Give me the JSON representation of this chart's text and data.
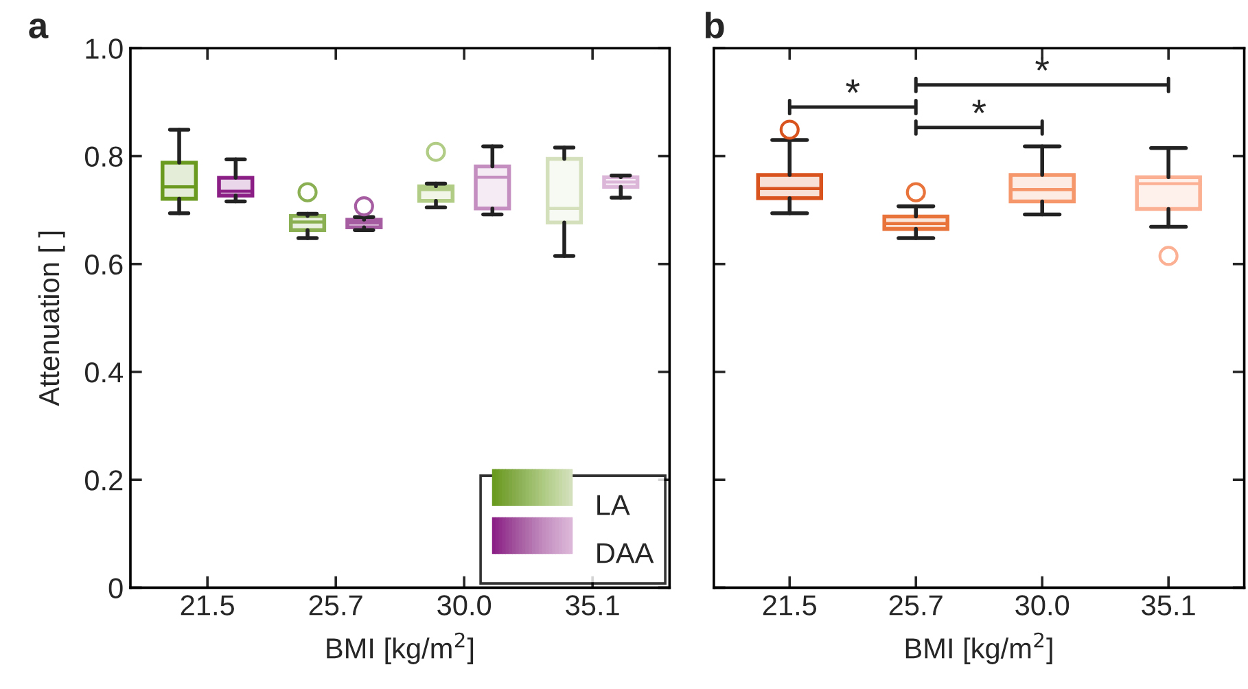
{
  "chart_data": [
    {
      "type": "box",
      "title": "a",
      "xlabel": "BMI [kg/m$^{2}$]",
      "ylabel": "Attenuation [ ]",
      "categories": [
        "21.5",
        "25.7",
        "30.0",
        "35.1"
      ],
      "ylim": [
        0,
        1
      ],
      "yticks": [
        0,
        0.2,
        0.4,
        0.6,
        0.8,
        {
          "value": 1,
          "label": "1.0"
        }
      ],
      "grid": false,
      "legend": "bottom right",
      "series": [
        {
          "name": "LA",
          "colors": [
            "#6a9a1f",
            "#8bb054",
            "#b0cc85",
            "#d3e0bb"
          ],
          "boxes": [
            {
              "low": 0.694,
              "q1": 0.721,
              "median": 0.743,
              "q3": 0.788,
              "high": 0.849
            },
            {
              "low": 0.648,
              "q1": 0.663,
              "median": 0.678,
              "q3": 0.689,
              "high": 0.693,
              "outliers": [
                0.733
              ]
            },
            {
              "low": 0.705,
              "q1": 0.717,
              "median": 0.738,
              "q3": 0.744,
              "high": 0.749,
              "outliers": [
                0.808
              ]
            },
            {
              "low": 0.615,
              "q1": 0.677,
              "median": 0.703,
              "q3": 0.795,
              "high": 0.816
            }
          ]
        },
        {
          "name": "DAA",
          "colors": [
            "#8b1f86",
            "#a65ca1",
            "#c48fc0",
            "#dbb6d8"
          ],
          "boxes": [
            {
              "low": 0.716,
              "q1": 0.727,
              "median": 0.735,
              "q3": 0.76,
              "high": 0.794
            },
            {
              "low": 0.663,
              "q1": 0.668,
              "median": 0.676,
              "q3": 0.682,
              "high": 0.687,
              "outliers": [
                0.707
              ]
            },
            {
              "low": 0.692,
              "q1": 0.703,
              "median": 0.761,
              "q3": 0.781,
              "high": 0.818
            },
            {
              "low": 0.723,
              "q1": 0.743,
              "median": 0.752,
              "q3": 0.761,
              "high": 0.764
            }
          ]
        }
      ]
    },
    {
      "type": "box",
      "title": "b",
      "xlabel": "BMI [kg/m$^{2}$]",
      "categories": [
        "21.5",
        "25.7",
        "30.0",
        "35.1"
      ],
      "ylim": [
        0,
        1
      ],
      "yticks": [
        0,
        0.2,
        0.4,
        0.6,
        0.8,
        1
      ],
      "grid": false,
      "tick_labels": "x",
      "annotations": [
        "*",
        "*",
        "*"
      ],
      "series": [
        {
          "colors": [
            "#d9531e",
            "#e8743c",
            "#f5966b",
            "#fbb093"
          ],
          "boxes": [
            {
              "low": 0.694,
              "q1": 0.722,
              "median": 0.74,
              "q3": 0.765,
              "high": 0.83,
              "outliers": [
                0.849
              ]
            },
            {
              "low": 0.648,
              "q1": 0.665,
              "median": 0.675,
              "q3": 0.688,
              "high": 0.707,
              "outliers": [
                0.733
              ]
            },
            {
              "low": 0.692,
              "q1": 0.716,
              "median": 0.738,
              "q3": 0.765,
              "high": 0.818
            },
            {
              "low": 0.669,
              "q1": 0.702,
              "median": 0.749,
              "q3": 0.761,
              "high": 0.815,
              "outliers": [
                0.615
              ]
            }
          ]
        }
      ]
    }
  ]
}
